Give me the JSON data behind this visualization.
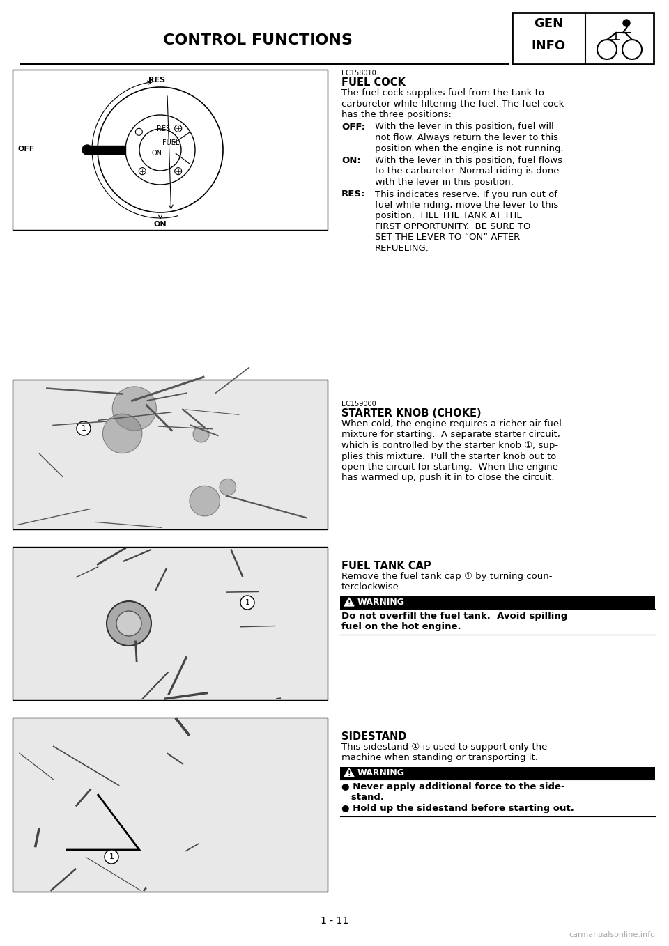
{
  "page_number": "1 - 11",
  "header_title": "CONTROL FUNCTIONS",
  "bg_color": "#ffffff",
  "text_color": "#000000",
  "section1_code": "EC158010",
  "section1_title": "FUEL COCK",
  "section2_code": "EC159000",
  "section2_title": "STARTER KNOB (CHOKE)",
  "section3_title": "FUEL TANK CAP",
  "section3_warning_title": "WARNING",
  "section4_title": "SIDESTAND",
  "section4_warning_title": "WARNING",
  "footer_url": "carmanualsonline.info"
}
